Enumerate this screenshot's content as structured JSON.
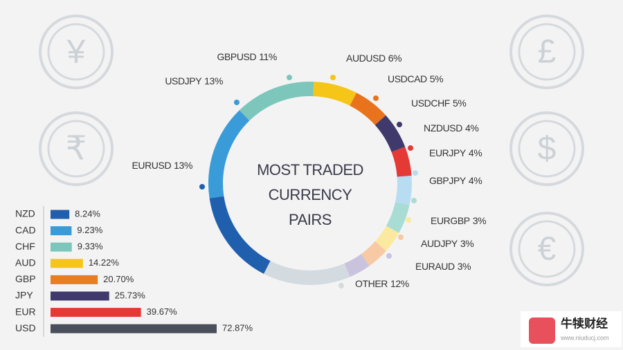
{
  "chart_data": [
    {
      "type": "pie",
      "donut": true,
      "title": "MOST TRADED CURRENCY PAIRS",
      "categories": [
        "AUDUSD",
        "USDCAD",
        "USDCHF",
        "NZDUSD",
        "EURJPY",
        "GBPJPY",
        "EURGBP",
        "AUDJPY",
        "EURAUD",
        "OTHER",
        "EURUSD",
        "USDJPY",
        "GBPUSD"
      ],
      "values": [
        6,
        5,
        5,
        4,
        4,
        4,
        3,
        3,
        3,
        12,
        13,
        13,
        11
      ],
      "value_labels": [
        "6%",
        "5%",
        "5%",
        "4%",
        "4%",
        "4%",
        "3%",
        "3%",
        "3%",
        "12%",
        "13%",
        "13%",
        "11%"
      ],
      "colors": [
        "#f5c518",
        "#e8731c",
        "#3f3a6b",
        "#e53935",
        "#b8dcf2",
        "#a8dcd4",
        "#fbe9a0",
        "#f7c9a4",
        "#c9c3de",
        "#d3dbe0",
        "#1f5fad",
        "#3a9bd9",
        "#7cc6bb"
      ]
    },
    {
      "type": "bar",
      "orientation": "horizontal",
      "categories": [
        "NZD",
        "CAD",
        "CHF",
        "AUD",
        "GBP",
        "JPY",
        "EUR",
        "USD"
      ],
      "values": [
        8.24,
        9.23,
        9.33,
        14.22,
        20.7,
        25.73,
        39.67,
        72.87
      ],
      "value_labels": [
        "8.24%",
        "9.23%",
        "9.33%",
        "14.22%",
        "20.70%",
        "25.73%",
        "39.67%",
        "72.87%"
      ],
      "colors": [
        "#1f5fad",
        "#3a9bd9",
        "#7cc6bb",
        "#f5c518",
        "#e67e22",
        "#3f3a6b",
        "#e53935",
        "#4a4f5c"
      ]
    }
  ],
  "icons": [
    "¥",
    "₹",
    "£",
    "$",
    "€"
  ],
  "watermark": {
    "name": "牛犊财经",
    "url": "www.niuducj.com"
  }
}
